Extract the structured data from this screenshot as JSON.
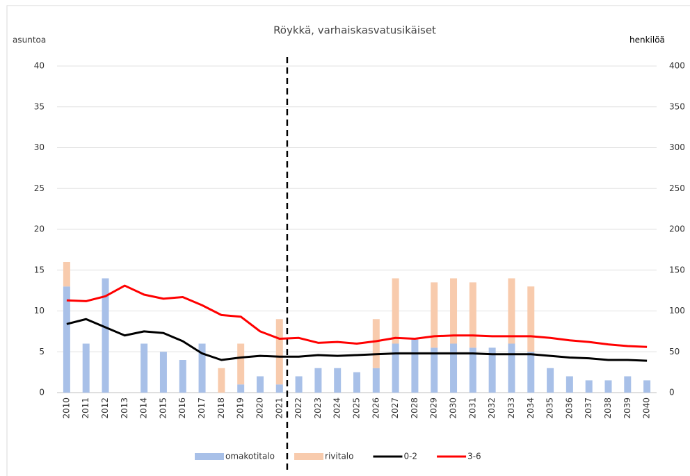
{
  "chart_data": {
    "type": "bar-line",
    "title": "Röykkä, varhaiskasvatusikäiset",
    "y_label": "asuntoa",
    "y2_label": "henkilöä",
    "categories": [
      "2010",
      "2011",
      "2012",
      "2013",
      "2014",
      "2015",
      "2016",
      "2017",
      "2018",
      "2019",
      "2020",
      "2021",
      "2022",
      "2023",
      "2024",
      "2025",
      "2026",
      "2027",
      "2028",
      "2029",
      "2030",
      "2031",
      "2032",
      "2033",
      "2034",
      "2035",
      "2036",
      "2037",
      "2038",
      "2039",
      "2040"
    ],
    "series": [
      {
        "name": "omakotitalo",
        "type": "bar",
        "stack": true,
        "color": "#a8c0e8",
        "values": [
          13,
          6,
          14,
          0,
          6,
          5,
          4,
          6,
          0,
          1,
          2,
          1,
          2,
          3,
          3,
          2.5,
          3,
          6,
          6.5,
          5.5,
          6,
          5.5,
          5.5,
          6,
          5,
          3,
          2,
          1.5,
          1.5,
          2,
          1.5
        ]
      },
      {
        "name": "rivitalo",
        "type": "bar",
        "stack": true,
        "color": "#f8cbad",
        "values": [
          3,
          0,
          0,
          0,
          0,
          0,
          0,
          0,
          3,
          5,
          0,
          8,
          0,
          0,
          0,
          0,
          6,
          8,
          0,
          8,
          8,
          8,
          0,
          8,
          8,
          0,
          0,
          0,
          0,
          0,
          0
        ]
      },
      {
        "name": "0-2",
        "type": "line",
        "axis": "y2",
        "color": "#000000",
        "values": [
          84,
          90,
          80,
          70,
          75,
          73,
          63,
          48,
          40,
          43,
          45,
          44,
          44,
          46,
          45,
          46,
          47,
          48,
          48,
          48,
          48,
          48,
          47,
          47,
          47,
          45,
          43,
          42,
          40,
          40,
          39
        ]
      },
      {
        "name": "3-6",
        "type": "line",
        "axis": "y2",
        "color": "#ff0000",
        "values": [
          113,
          112,
          118,
          131,
          120,
          115,
          117,
          107,
          95,
          93,
          75,
          66,
          67,
          61,
          62,
          60,
          63,
          67,
          66,
          69,
          70,
          70,
          69,
          69,
          69,
          67,
          64,
          62,
          59,
          57,
          56
        ]
      }
    ],
    "ylim": [
      0,
      40
    ],
    "yticks": [
      0,
      5,
      10,
      15,
      20,
      25,
      30,
      35,
      40
    ],
    "y2lim": [
      0,
      400
    ],
    "y2ticks": [
      0,
      50,
      100,
      150,
      200,
      250,
      300,
      350,
      400
    ],
    "grid": true
  }
}
